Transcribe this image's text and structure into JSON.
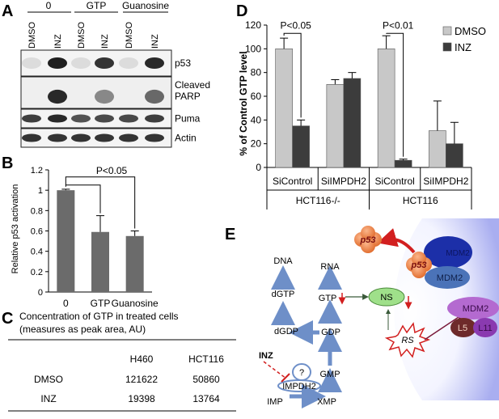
{
  "panel_a": {
    "letter": "A",
    "groups": [
      "0",
      "GTP",
      "Guanosine"
    ],
    "lanes": [
      "DMSO",
      "INZ",
      "DMSO",
      "INZ",
      "DMSO",
      "INZ"
    ],
    "blots": [
      "p53",
      "Cleaved\nPARP",
      "Puma",
      "Actin"
    ],
    "blot_lines": [
      [
        "p53"
      ],
      [
        "Cleaved",
        "PARP"
      ],
      [
        "Puma"
      ],
      [
        "Actin"
      ]
    ]
  },
  "panel_b": {
    "letter": "B",
    "ylabel": "Relative p53 activation",
    "significance": "P<0.05",
    "chart_data": {
      "type": "bar",
      "categories": [
        "0",
        "GTP",
        "Guanosine"
      ],
      "values": [
        1.0,
        0.59,
        0.55
      ],
      "errors": [
        0.01,
        0.16,
        0.05
      ],
      "ylabel": "Relative p53 activation",
      "ylim": [
        0,
        1.2
      ],
      "yticks": [
        "0",
        "0.2",
        "0.4",
        "0.6",
        "0.8",
        "1",
        "1.2"
      ],
      "color": "#6b6b6b"
    }
  },
  "panel_c": {
    "letter": "C",
    "caption_line1": "Concentration of GTP in treated cells",
    "caption_line2": "(measures as peak area, AU)",
    "columns": [
      "",
      "H460",
      "HCT116"
    ],
    "rows": [
      {
        "label": "DMSO",
        "h460": "121622",
        "hct116": "50860"
      },
      {
        "label": "INZ",
        "h460": "19398",
        "hct116": "13764"
      }
    ]
  },
  "panel_d": {
    "letter": "D",
    "ylabel": "% of Control GTP level",
    "sig1": "P<0.05",
    "sig2": "P<0.01",
    "group1": "HCT116-/-",
    "group2": "HCT116",
    "chart_data": {
      "type": "bar",
      "categories": [
        "SiControl",
        "SiIMPDH2",
        "SiControl",
        "SiIMPDH2"
      ],
      "series": [
        {
          "name": "DMSO",
          "values": [
            100,
            70,
            100,
            31
          ],
          "errors": [
            9,
            4,
            11,
            25
          ],
          "color": "#c8c8c8"
        },
        {
          "name": "INZ",
          "values": [
            35,
            75,
            6,
            20
          ],
          "errors": [
            5,
            5,
            1,
            18
          ],
          "color": "#3c3c3c"
        }
      ],
      "ylabel": "% of Control GTP level",
      "ylim": [
        0,
        120
      ],
      "yticks": [
        "0",
        "20",
        "40",
        "60",
        "80",
        "100",
        "120"
      ],
      "legend": "top-right"
    }
  },
  "panel_e": {
    "letter": "E",
    "nodes": {
      "dna": "DNA",
      "rna": "RNA",
      "dgtp": "dGTP",
      "gtp": "GTP",
      "dgdp": "dGDP",
      "gdp": "GDP",
      "gmp": "GMP",
      "imp": "IMP",
      "xmp": "XMP",
      "impdh2": "IMPDH2",
      "unknown": "?",
      "inz": "INZ",
      "ns": "NS",
      "rs": "RS",
      "p53_free": "p53",
      "p53_bound": "p53",
      "mdm2_top": "MDM2",
      "mdm2_bottom": "MDM2",
      "mdm2_complex": "MDM2",
      "l5": "L5",
      "l11": "L11"
    }
  }
}
